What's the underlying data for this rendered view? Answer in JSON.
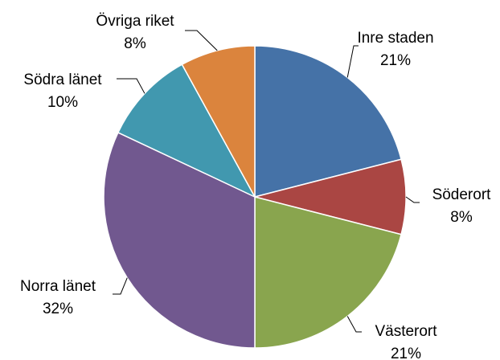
{
  "chart_data": {
    "type": "pie",
    "categories": [
      "Inre staden",
      "Söderort",
      "Västerort",
      "Norra länet",
      "Södra länet",
      "Övriga riket"
    ],
    "values": [
      21,
      8,
      21,
      32,
      10,
      8
    ],
    "value_labels": [
      "21%",
      "8%",
      "21%",
      "32%",
      "10%",
      "8%"
    ],
    "colors": [
      "#4572a7",
      "#aa4643",
      "#89a54e",
      "#71588f",
      "#4198af",
      "#db843d"
    ]
  }
}
